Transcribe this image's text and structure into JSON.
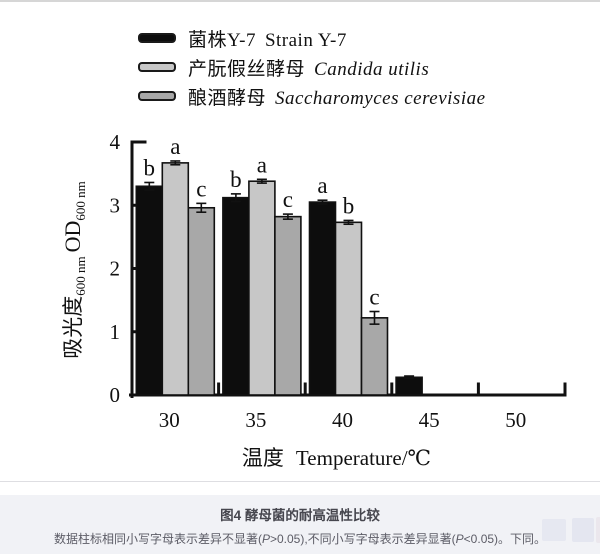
{
  "legend": {
    "items": [
      {
        "label_cjk": "菌株Y-7",
        "label_latin": "Strain Y-7"
      },
      {
        "label_cjk": "产朊假丝酵母",
        "label_latin": "Candida utilis"
      },
      {
        "label_cjk": "酿酒酵母",
        "label_latin": "Saccharomyces cerevisiae"
      }
    ]
  },
  "chart_data": {
    "type": "bar",
    "title": "",
    "categories": [
      "30",
      "35",
      "40",
      "45",
      "50"
    ],
    "xlabel_cjk": "温度",
    "xlabel_latin": "Temperature/℃",
    "ylabel_cjk": "吸光度",
    "ylabel_sub1": "600 nm",
    "ylabel_latin": "OD",
    "ylabel_sub2": "600 nm",
    "ylim": [
      0,
      4
    ],
    "yticks": [
      "0",
      "1",
      "2",
      "3",
      "4"
    ],
    "grid": false,
    "legend_position": "top-left",
    "series": [
      {
        "name": "菌株Y-7 Strain Y-7",
        "color": "#0d0d0d",
        "values": [
          3.3,
          3.12,
          3.05,
          0.28,
          0
        ],
        "errors": [
          0.06,
          0.06,
          0.03,
          0.02,
          0
        ],
        "letters": [
          "b",
          "b",
          "a",
          "",
          ""
        ]
      },
      {
        "name": "产朊假丝酵母 Candida utilis",
        "color": "#c7c7c7",
        "values": [
          3.67,
          3.38,
          2.73,
          0,
          0
        ],
        "errors": [
          0.03,
          0.03,
          0.03,
          0,
          0
        ],
        "letters": [
          "a",
          "a",
          "b",
          "",
          ""
        ]
      },
      {
        "name": "酿酒酵母 Saccharomyces cerevisiae",
        "color": "#a8a8a8",
        "values": [
          2.96,
          2.82,
          1.22,
          0,
          0
        ],
        "errors": [
          0.07,
          0.04,
          0.1,
          0,
          0
        ],
        "letters": [
          "c",
          "c",
          "c",
          "",
          ""
        ]
      }
    ]
  },
  "caption": {
    "title": "图4 酵母菌的耐高温性比较",
    "note": {
      "seg1": "数据柱标相同小写字母表示差异不显著(",
      "p1": "P",
      "seg2": ">0.05),不同小写字母表示差异显著(",
      "p2": "P",
      "seg3": "<0.05)。下同。"
    }
  }
}
